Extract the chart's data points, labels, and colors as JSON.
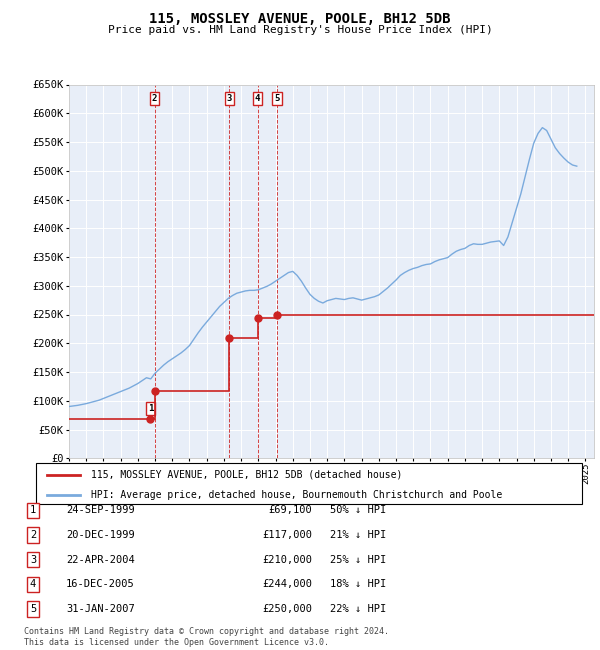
{
  "title": "115, MOSSLEY AVENUE, POOLE, BH12 5DB",
  "subtitle": "Price paid vs. HM Land Registry's House Price Index (HPI)",
  "ylim": [
    0,
    650000
  ],
  "ytick_values": [
    0,
    50000,
    100000,
    150000,
    200000,
    250000,
    300000,
    350000,
    400000,
    450000,
    500000,
    550000,
    600000,
    650000
  ],
  "xlim_start": 1995.0,
  "xlim_end": 2025.5,
  "plot_bg_color": "#e8eef8",
  "grid_color": "#ffffff",
  "hpi_color": "#7aaadd",
  "price_color": "#cc2222",
  "sale_points": [
    {
      "year": 1999.73,
      "price": 69100,
      "label": "1"
    },
    {
      "year": 1999.97,
      "price": 117000,
      "label": "2"
    },
    {
      "year": 2004.31,
      "price": 210000,
      "label": "3"
    },
    {
      "year": 2005.96,
      "price": 244000,
      "label": "4"
    },
    {
      "year": 2007.08,
      "price": 250000,
      "label": "5"
    }
  ],
  "vline_sales": [
    1999.97,
    2004.31,
    2005.96,
    2007.08
  ],
  "legend_label_red": "115, MOSSLEY AVENUE, POOLE, BH12 5DB (detached house)",
  "legend_label_blue": "HPI: Average price, detached house, Bournemouth Christchurch and Poole",
  "table_rows": [
    {
      "num": "1",
      "date": "24-SEP-1999",
      "price": "£69,100",
      "hpi": "50% ↓ HPI"
    },
    {
      "num": "2",
      "date": "20-DEC-1999",
      "price": "£117,000",
      "hpi": "21% ↓ HPI"
    },
    {
      "num": "3",
      "date": "22-APR-2004",
      "price": "£210,000",
      "hpi": "25% ↓ HPI"
    },
    {
      "num": "4",
      "date": "16-DEC-2005",
      "price": "£244,000",
      "hpi": "18% ↓ HPI"
    },
    {
      "num": "5",
      "date": "31-JAN-2007",
      "price": "£250,000",
      "hpi": "22% ↓ HPI"
    }
  ],
  "footer": "Contains HM Land Registry data © Crown copyright and database right 2024.\nThis data is licensed under the Open Government Licence v3.0.",
  "hpi_data_x": [
    1995.0,
    1995.25,
    1995.5,
    1995.75,
    1996.0,
    1996.25,
    1996.5,
    1996.75,
    1997.0,
    1997.25,
    1997.5,
    1997.75,
    1998.0,
    1998.25,
    1998.5,
    1998.75,
    1999.0,
    1999.25,
    1999.5,
    1999.75,
    2000.0,
    2000.25,
    2000.5,
    2000.75,
    2001.0,
    2001.25,
    2001.5,
    2001.75,
    2002.0,
    2002.25,
    2002.5,
    2002.75,
    2003.0,
    2003.25,
    2003.5,
    2003.75,
    2004.0,
    2004.25,
    2004.5,
    2004.75,
    2005.0,
    2005.25,
    2005.5,
    2005.75,
    2006.0,
    2006.25,
    2006.5,
    2006.75,
    2007.0,
    2007.25,
    2007.5,
    2007.75,
    2008.0,
    2008.25,
    2008.5,
    2008.75,
    2009.0,
    2009.25,
    2009.5,
    2009.75,
    2010.0,
    2010.25,
    2010.5,
    2010.75,
    2011.0,
    2011.25,
    2011.5,
    2011.75,
    2012.0,
    2012.25,
    2012.5,
    2012.75,
    2013.0,
    2013.25,
    2013.5,
    2013.75,
    2014.0,
    2014.25,
    2014.5,
    2014.75,
    2015.0,
    2015.25,
    2015.5,
    2015.75,
    2016.0,
    2016.25,
    2016.5,
    2016.75,
    2017.0,
    2017.25,
    2017.5,
    2017.75,
    2018.0,
    2018.25,
    2018.5,
    2018.75,
    2019.0,
    2019.25,
    2019.5,
    2019.75,
    2020.0,
    2020.25,
    2020.5,
    2020.75,
    2021.0,
    2021.25,
    2021.5,
    2021.75,
    2022.0,
    2022.25,
    2022.5,
    2022.75,
    2023.0,
    2023.25,
    2023.5,
    2023.75,
    2024.0,
    2024.25,
    2024.5
  ],
  "hpi_data_y": [
    90000,
    91000,
    92000,
    93500,
    95000,
    97000,
    99000,
    101000,
    104000,
    107000,
    110000,
    113000,
    116000,
    119000,
    122000,
    126000,
    130000,
    135000,
    140000,
    138000,
    148000,
    155000,
    162000,
    168000,
    173000,
    178000,
    183000,
    189000,
    196000,
    207000,
    218000,
    228000,
    237000,
    246000,
    255000,
    264000,
    271000,
    278000,
    283000,
    287000,
    289000,
    291000,
    292000,
    292000,
    293000,
    296000,
    299000,
    303000,
    308000,
    313000,
    318000,
    323000,
    325000,
    318000,
    308000,
    296000,
    285000,
    278000,
    273000,
    270000,
    274000,
    276000,
    278000,
    277000,
    276000,
    278000,
    279000,
    277000,
    275000,
    277000,
    279000,
    281000,
    284000,
    290000,
    296000,
    303000,
    310000,
    318000,
    323000,
    327000,
    330000,
    332000,
    335000,
    337000,
    338000,
    342000,
    345000,
    347000,
    349000,
    355000,
    360000,
    363000,
    365000,
    370000,
    373000,
    372000,
    372000,
    374000,
    376000,
    377000,
    378000,
    370000,
    385000,
    410000,
    435000,
    460000,
    490000,
    520000,
    548000,
    565000,
    575000,
    570000,
    555000,
    540000,
    530000,
    522000,
    515000,
    510000,
    508000
  ]
}
